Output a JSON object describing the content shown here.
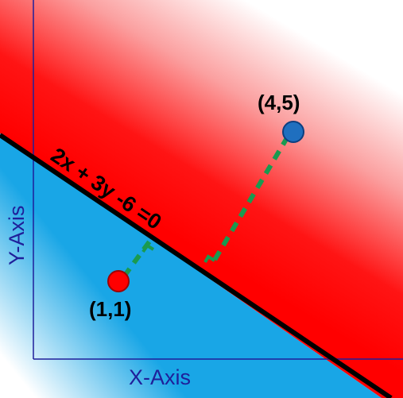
{
  "axes": {
    "x_label": "X-Axis",
    "y_label": "Y-Axis",
    "color": "#1f1f9a"
  },
  "line": {
    "equation": "2x + 3y -6 =0",
    "color": "#000000"
  },
  "regions": {
    "above_color": "#ff0000",
    "below_color": "#19a6e6"
  },
  "points": [
    {
      "label": "(4,5)",
      "color": "#1f6fbf"
    },
    {
      "label": "(1,1)",
      "color": "#ff0000"
    }
  ],
  "perpendicular": {
    "color": "#1a9a50"
  }
}
